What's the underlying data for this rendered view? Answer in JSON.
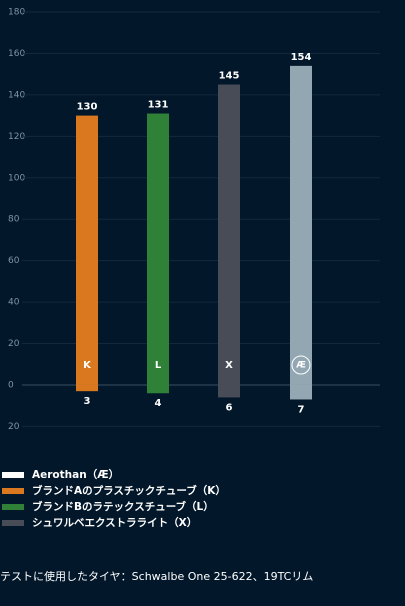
{
  "chart_data": {
    "type": "bar",
    "categories": [
      "K",
      "L",
      "X",
      "Æ"
    ],
    "colors": [
      "#d9781e",
      "#2f8137",
      "#484c57",
      "#93a7b3"
    ],
    "series": [
      {
        "values": [
          130,
          131,
          145,
          154
        ]
      },
      {
        "values": [
          -3,
          -4,
          -6,
          -7
        ],
        "value_labels": [
          "3",
          "4",
          "6",
          "7"
        ]
      }
    ],
    "ylim": [
      -20,
      180
    ],
    "yticks": [
      {
        "value": -20,
        "label": "20"
      },
      0,
      20,
      40,
      60,
      80,
      100,
      120,
      140,
      160,
      180
    ],
    "grid": true,
    "legend": [
      {
        "label": "Aerothan（Æ）",
        "color": "#ffffff"
      },
      {
        "label": "ブランドAのプラスチックチューブ（K）",
        "color": "#d9781e"
      },
      {
        "label": "ブランドBのラテックスチューブ（L）",
        "color": "#2f8137"
      },
      {
        "label": "シュワルベエクストラライト（X）",
        "color": "#484c57"
      }
    ],
    "footnote": "テストに使用したタイヤ：Schwalbe One 25-622、19TCリム"
  }
}
